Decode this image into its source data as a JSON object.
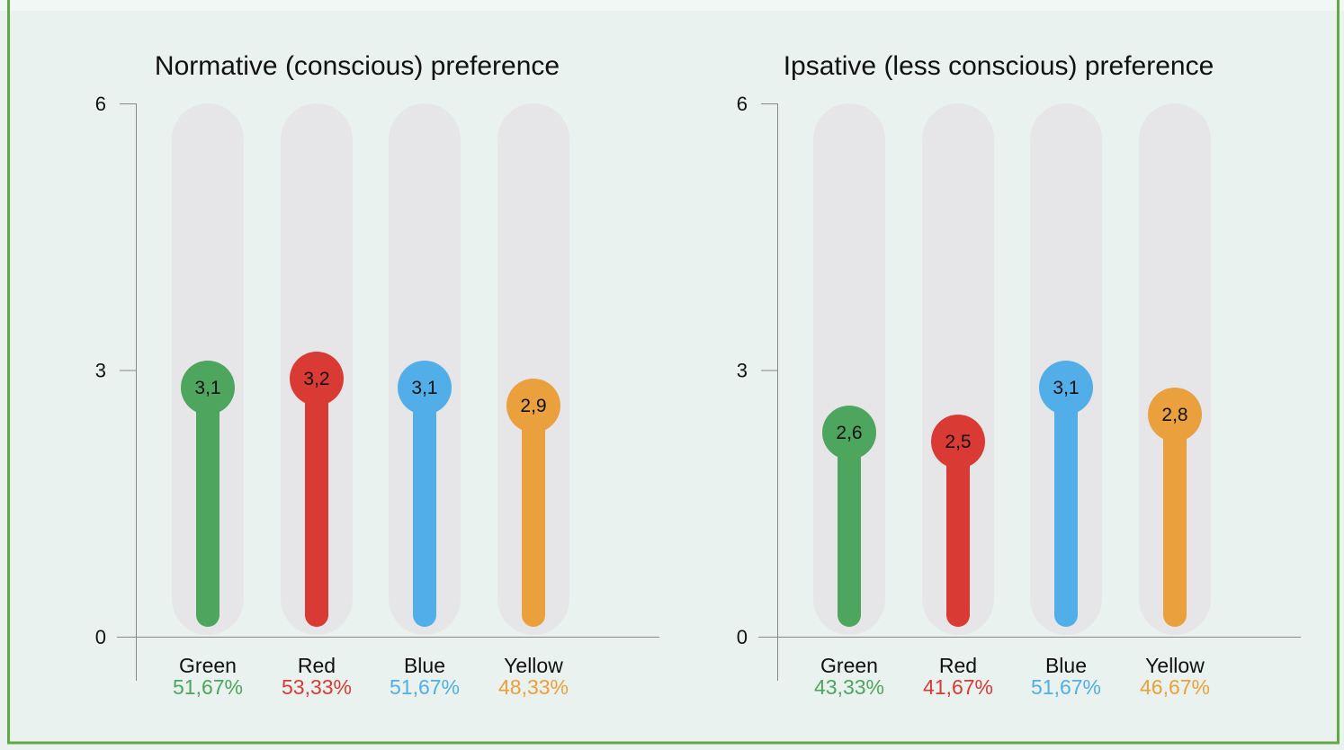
{
  "colors": {
    "Green": "#4ea55d",
    "Red": "#d93a33",
    "Blue": "#52aee8",
    "Yellow": "#eba03e",
    "track": "#e6e6e8",
    "frame": "#62a844"
  },
  "chart_data": [
    {
      "type": "bar",
      "title": "Normative (conscious) preference",
      "categories": [
        "Green",
        "Red",
        "Blue",
        "Yellow"
      ],
      "values": [
        3.1,
        3.2,
        3.1,
        2.9
      ],
      "value_labels": [
        "3,1",
        "3,2",
        "3,1",
        "2,9"
      ],
      "percent_labels": [
        "51,67%",
        "53,33%",
        "51,67%",
        "48,33%"
      ],
      "yticks": [
        "0",
        "3",
        "6"
      ],
      "ylim": [
        0,
        6
      ]
    },
    {
      "type": "bar",
      "title": "Ipsative (less conscious) preference",
      "categories": [
        "Green",
        "Red",
        "Blue",
        "Yellow"
      ],
      "values": [
        2.6,
        2.5,
        3.1,
        2.8
      ],
      "value_labels": [
        "2,6",
        "2,5",
        "3,1",
        "2,8"
      ],
      "percent_labels": [
        "43,33%",
        "41,67%",
        "51,67%",
        "46,67%"
      ],
      "yticks": [
        "0",
        "3",
        "6"
      ],
      "ylim": [
        0,
        6
      ]
    }
  ]
}
